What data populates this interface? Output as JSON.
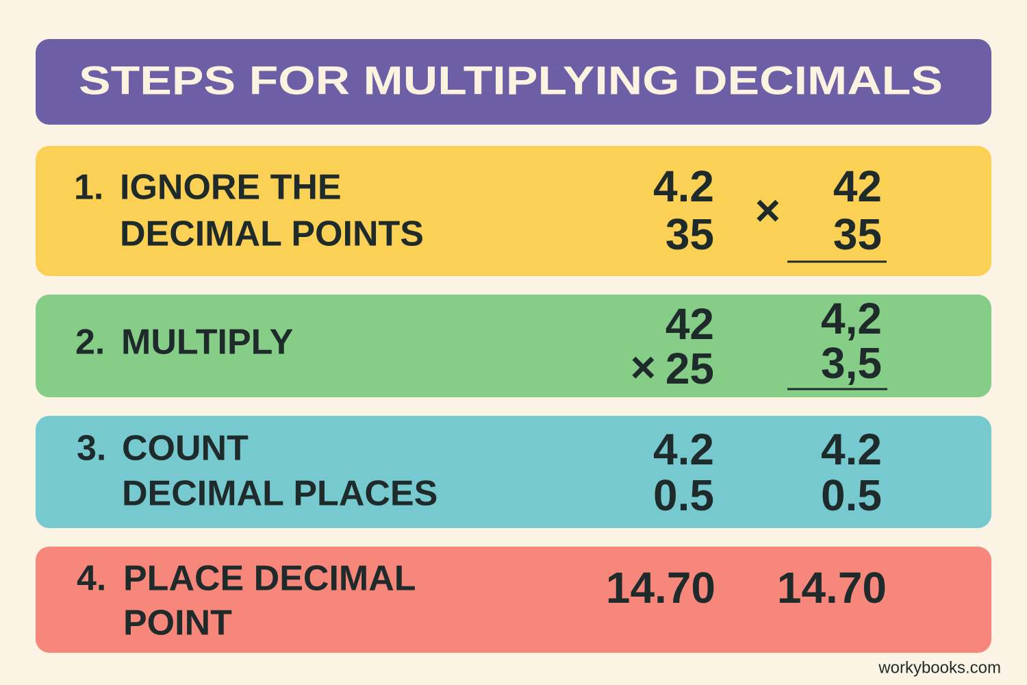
{
  "header": {
    "title": "STEPS FOR MULTIPLYING DECIMALS"
  },
  "steps": [
    {
      "number": "1.",
      "label": [
        "IGNORE THE",
        "DECIMAL POINTS"
      ],
      "left": [
        "4.2",
        "35"
      ],
      "operator": "×",
      "right": [
        "42",
        "35"
      ]
    },
    {
      "number": "2.",
      "label": [
        "MULTIPLY"
      ],
      "left": [
        "42",
        "25"
      ],
      "left_operator": "×",
      "right": [
        "4,2",
        "3,5"
      ]
    },
    {
      "number": "3.",
      "label": [
        "COUNT",
        "DECIMAL PLACES"
      ],
      "left": [
        "4.2",
        "0.5"
      ],
      "right": [
        "4.2",
        "0.5"
      ]
    },
    {
      "number": "4.",
      "label": [
        "PLACE DECIMAL",
        "POINT"
      ],
      "left": [
        "14.70"
      ],
      "right": [
        "14.70"
      ]
    }
  ],
  "footer": {
    "source": "workybooks.com"
  }
}
